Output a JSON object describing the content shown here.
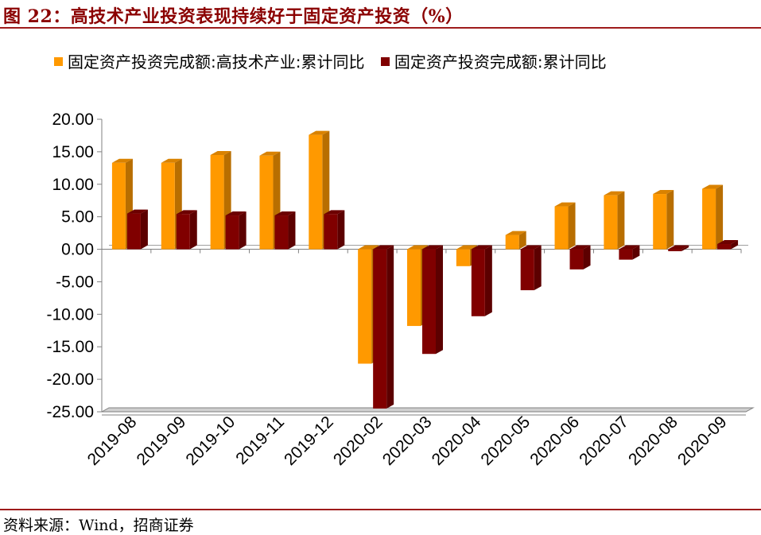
{
  "header": {
    "title": "图 22：高技术产业投资表现持续好于固定资产投资（%）"
  },
  "footer": {
    "source": "资料来源：Wind，招商证券"
  },
  "colors": {
    "series1": "#FF9900",
    "series2": "#800000",
    "accent": "#9E1B1B"
  },
  "chart_data": {
    "type": "bar",
    "categories": [
      "2019-08",
      "2019-09",
      "2019-10",
      "2019-11",
      "2019-12",
      "2020-02",
      "2020-03",
      "2020-04",
      "2020-05",
      "2020-06",
      "2020-07",
      "2020-08",
      "2020-09"
    ],
    "series": [
      {
        "name": "固定资产投资完成额:高技术产业:累计同比",
        "values": [
          13.3,
          13.3,
          14.5,
          14.4,
          17.6,
          -17.6,
          -11.8,
          -2.6,
          2.2,
          6.6,
          8.3,
          8.5,
          9.3
        ]
      },
      {
        "name": "固定资产投资完成额:累计同比",
        "values": [
          5.5,
          5.4,
          5.2,
          5.2,
          5.4,
          -24.5,
          -16.1,
          -10.3,
          -6.3,
          -3.1,
          -1.6,
          -0.3,
          0.8
        ]
      }
    ],
    "ylim": [
      -25,
      20
    ],
    "yticks": [
      "20.00",
      "15.00",
      "10.00",
      "5.00",
      "0.00",
      "-5.00",
      "-10.00",
      "-15.00",
      "-20.00",
      "-25.00"
    ],
    "yticks_values": [
      20,
      15,
      10,
      5,
      0,
      -5,
      -10,
      -15,
      -20,
      -25
    ],
    "grid": false,
    "legend": "top"
  }
}
